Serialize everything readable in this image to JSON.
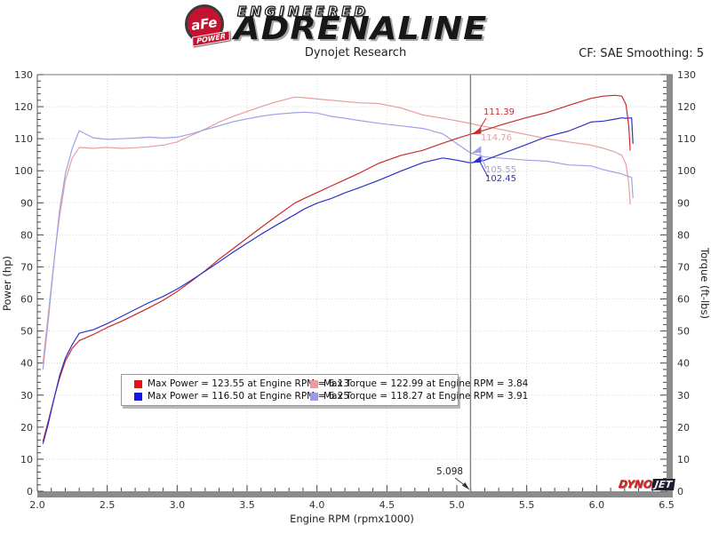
{
  "header": {
    "logo": {
      "badge_top": "aFe",
      "badge_bottom": "POWER",
      "title_top": "ENGINEERED",
      "title_main": "ADRENALINE"
    },
    "subtitle": "Dynojet Research",
    "correction": "CF: SAE Smoothing: 5"
  },
  "chart_data": {
    "type": "line",
    "x_axis": {
      "label": "Engine RPM (rpmx1000)",
      "min": 2.0,
      "max": 6.5,
      "major_tick": 0.5,
      "minor_tick": 0.1,
      "tick_labels": [
        "2.0",
        "2.5",
        "3.0",
        "3.5",
        "4.0",
        "4.5",
        "5.0",
        "5.5",
        "6.0",
        "6.5"
      ]
    },
    "y_left": {
      "label": "Power (hp)",
      "min": 0,
      "max": 130,
      "major_tick": 10,
      "minor_tick": 2,
      "tick_labels": [
        "0",
        "10",
        "20",
        "30",
        "40",
        "50",
        "60",
        "70",
        "80",
        "90",
        "100",
        "110",
        "120",
        "130"
      ]
    },
    "y_right": {
      "label": "Torque (ft-lbs)",
      "min": 0,
      "max": 130,
      "major_tick": 10,
      "minor_tick": 2,
      "tick_labels": [
        "0",
        "10",
        "20",
        "30",
        "40",
        "50",
        "60",
        "70",
        "80",
        "90",
        "100",
        "110",
        "120",
        "130"
      ]
    },
    "grid": {
      "style": "dotted",
      "horizontal_at": [
        10,
        20,
        30,
        40,
        50,
        60,
        70,
        80,
        90,
        100,
        110,
        120
      ],
      "vertical_at": [
        2.5,
        3.0,
        3.5,
        4.0,
        4.5,
        5.0,
        5.5,
        6.0
      ]
    },
    "series": [
      {
        "name": "power-run-1",
        "unit": "hp",
        "color": "#c92a2a",
        "points": [
          [
            2.04,
            15.5
          ],
          [
            2.06,
            18.8
          ],
          [
            2.08,
            22.2
          ],
          [
            2.1,
            25.6
          ],
          [
            2.13,
            30.8
          ],
          [
            2.16,
            35.4
          ],
          [
            2.2,
            40.6
          ],
          [
            2.25,
            44.6
          ],
          [
            2.3,
            47.0
          ],
          [
            2.4,
            48.9
          ],
          [
            2.5,
            51.1
          ],
          [
            2.6,
            53.0
          ],
          [
            2.7,
            55.1
          ],
          [
            2.8,
            57.3
          ],
          [
            2.9,
            59.6
          ],
          [
            3.0,
            62.3
          ],
          [
            3.1,
            65.5
          ],
          [
            3.2,
            68.8
          ],
          [
            3.3,
            72.4
          ],
          [
            3.4,
            75.7
          ],
          [
            3.5,
            79.0
          ],
          [
            3.6,
            82.3
          ],
          [
            3.7,
            85.5
          ],
          [
            3.84,
            89.9
          ],
          [
            3.91,
            91.4
          ],
          [
            4.0,
            93.2
          ],
          [
            4.1,
            95.2
          ],
          [
            4.2,
            97.2
          ],
          [
            4.3,
            99.2
          ],
          [
            4.44,
            102.3
          ],
          [
            4.6,
            104.8
          ],
          [
            4.76,
            106.4
          ],
          [
            4.9,
            108.6
          ],
          [
            5.0,
            110.1
          ],
          [
            5.098,
            111.39
          ],
          [
            5.2,
            112.7
          ],
          [
            5.33,
            114.5
          ],
          [
            5.5,
            116.6
          ],
          [
            5.64,
            118.1
          ],
          [
            5.8,
            120.4
          ],
          [
            5.96,
            122.6
          ],
          [
            6.05,
            123.3
          ],
          [
            6.13,
            123.55
          ],
          [
            6.18,
            123.3
          ],
          [
            6.21,
            120.6
          ],
          [
            6.23,
            113.9
          ],
          [
            6.24,
            106.3
          ]
        ]
      },
      {
        "name": "torque-run-1",
        "unit": "ft-lbs",
        "color": "#e8a0a0",
        "points": [
          [
            2.04,
            40
          ],
          [
            2.06,
            48
          ],
          [
            2.08,
            56
          ],
          [
            2.1,
            64
          ],
          [
            2.13,
            76
          ],
          [
            2.16,
            86
          ],
          [
            2.2,
            97
          ],
          [
            2.25,
            104
          ],
          [
            2.3,
            107.3
          ],
          [
            2.4,
            107.0
          ],
          [
            2.5,
            107.3
          ],
          [
            2.6,
            107.0
          ],
          [
            2.7,
            107.2
          ],
          [
            2.8,
            107.5
          ],
          [
            2.9,
            108.0
          ],
          [
            3.0,
            109.0
          ],
          [
            3.1,
            111.0
          ],
          [
            3.2,
            113.0
          ],
          [
            3.3,
            115.2
          ],
          [
            3.4,
            117.0
          ],
          [
            3.5,
            118.5
          ],
          [
            3.6,
            120.0
          ],
          [
            3.7,
            121.4
          ],
          [
            3.84,
            122.99
          ],
          [
            3.91,
            122.8
          ],
          [
            4.0,
            122.4
          ],
          [
            4.1,
            122.0
          ],
          [
            4.2,
            121.6
          ],
          [
            4.3,
            121.2
          ],
          [
            4.44,
            121.0
          ],
          [
            4.6,
            119.6
          ],
          [
            4.76,
            117.4
          ],
          [
            4.9,
            116.4
          ],
          [
            5.0,
            115.6
          ],
          [
            5.098,
            114.76
          ],
          [
            5.2,
            113.8
          ],
          [
            5.33,
            112.8
          ],
          [
            5.5,
            111.3
          ],
          [
            5.64,
            110.0
          ],
          [
            5.8,
            109.0
          ],
          [
            5.96,
            108.0
          ],
          [
            6.05,
            107.0
          ],
          [
            6.13,
            105.86
          ],
          [
            6.18,
            104.8
          ],
          [
            6.21,
            102.0
          ],
          [
            6.23,
            96.0
          ],
          [
            6.24,
            89.5
          ]
        ]
      },
      {
        "name": "power-run-2",
        "unit": "hp",
        "color": "#3030c9",
        "points": [
          [
            2.04,
            14.8
          ],
          [
            2.06,
            18.0
          ],
          [
            2.08,
            21.4
          ],
          [
            2.1,
            25.2
          ],
          [
            2.13,
            30.8
          ],
          [
            2.16,
            36.2
          ],
          [
            2.2,
            41.5
          ],
          [
            2.25,
            45.8
          ],
          [
            2.3,
            49.3
          ],
          [
            2.4,
            50.4
          ],
          [
            2.5,
            52.3
          ],
          [
            2.6,
            54.5
          ],
          [
            2.7,
            56.7
          ],
          [
            2.8,
            58.9
          ],
          [
            2.9,
            60.8
          ],
          [
            3.0,
            63.1
          ],
          [
            3.1,
            65.8
          ],
          [
            3.2,
            68.7
          ],
          [
            3.3,
            71.6
          ],
          [
            3.4,
            74.6
          ],
          [
            3.5,
            77.4
          ],
          [
            3.6,
            80.2
          ],
          [
            3.7,
            82.8
          ],
          [
            3.84,
            86.3
          ],
          [
            3.91,
            88.1
          ],
          [
            4.0,
            89.9
          ],
          [
            4.1,
            91.3
          ],
          [
            4.2,
            93.1
          ],
          [
            4.3,
            94.7
          ],
          [
            4.44,
            97.0
          ],
          [
            4.6,
            99.9
          ],
          [
            4.76,
            102.6
          ],
          [
            4.9,
            104.0
          ],
          [
            5.0,
            103.3
          ],
          [
            5.098,
            102.45
          ],
          [
            5.2,
            103.3
          ],
          [
            5.33,
            105.4
          ],
          [
            5.5,
            108.2
          ],
          [
            5.64,
            110.6
          ],
          [
            5.8,
            112.4
          ],
          [
            5.96,
            115.2
          ],
          [
            6.05,
            115.5
          ],
          [
            6.13,
            116.1
          ],
          [
            6.18,
            116.5
          ],
          [
            6.21,
            116.4
          ],
          [
            6.25,
            116.5
          ],
          [
            6.26,
            108.4
          ]
        ]
      },
      {
        "name": "torque-run-2",
        "unit": "ft-lbs",
        "color": "#a0a0e8",
        "points": [
          [
            2.04,
            38
          ],
          [
            2.06,
            46
          ],
          [
            2.08,
            54
          ],
          [
            2.1,
            63
          ],
          [
            2.13,
            76
          ],
          [
            2.16,
            88
          ],
          [
            2.2,
            99
          ],
          [
            2.25,
            107
          ],
          [
            2.3,
            112.5
          ],
          [
            2.4,
            110.3
          ],
          [
            2.5,
            109.8
          ],
          [
            2.6,
            110.0
          ],
          [
            2.7,
            110.2
          ],
          [
            2.8,
            110.5
          ],
          [
            2.9,
            110.2
          ],
          [
            3.0,
            110.5
          ],
          [
            3.1,
            111.5
          ],
          [
            3.2,
            112.8
          ],
          [
            3.3,
            114.0
          ],
          [
            3.4,
            115.3
          ],
          [
            3.5,
            116.2
          ],
          [
            3.6,
            117.0
          ],
          [
            3.7,
            117.6
          ],
          [
            3.84,
            118.1
          ],
          [
            3.91,
            118.27
          ],
          [
            4.0,
            118.0
          ],
          [
            4.1,
            117.0
          ],
          [
            4.2,
            116.4
          ],
          [
            4.3,
            115.7
          ],
          [
            4.44,
            114.8
          ],
          [
            4.6,
            114.0
          ],
          [
            4.76,
            113.2
          ],
          [
            4.9,
            111.5
          ],
          [
            5.0,
            108.5
          ],
          [
            5.098,
            105.55
          ],
          [
            5.2,
            104.3
          ],
          [
            5.33,
            103.9
          ],
          [
            5.5,
            103.3
          ],
          [
            5.64,
            103.0
          ],
          [
            5.8,
            101.8
          ],
          [
            5.96,
            101.5
          ],
          [
            6.05,
            100.3
          ],
          [
            6.13,
            99.5
          ],
          [
            6.18,
            99.0
          ],
          [
            6.21,
            98.5
          ],
          [
            6.25,
            97.9
          ],
          [
            6.26,
            91.5
          ]
        ]
      }
    ],
    "legend": [
      {
        "color": "#e01414",
        "text": "Max Power = 123.55 at Engine RPM = 6.13"
      },
      {
        "color": "#ef9a9a",
        "text": "Max Torque = 122.99 at Engine RPM = 3.84"
      },
      {
        "color": "#1414e0",
        "text": "Max Power = 116.50 at Engine RPM = 6.25"
      },
      {
        "color": "#9a9aef",
        "text": "Max Torque = 118.27 at Engine RPM = 3.91"
      }
    ],
    "cursor": {
      "rpm": 5.098,
      "x_label": "5.098",
      "readouts": [
        {
          "label": "111.39",
          "value": 111.39,
          "series": 0
        },
        {
          "label": "114.76",
          "value": 114.76,
          "series": 1
        },
        {
          "label": "102.45",
          "value": 102.45,
          "series": 2
        },
        {
          "label": "105.55",
          "value": 105.55,
          "series": 3
        }
      ]
    }
  },
  "footer_logo": {
    "part1": "DYNO",
    "part2": "JET"
  }
}
